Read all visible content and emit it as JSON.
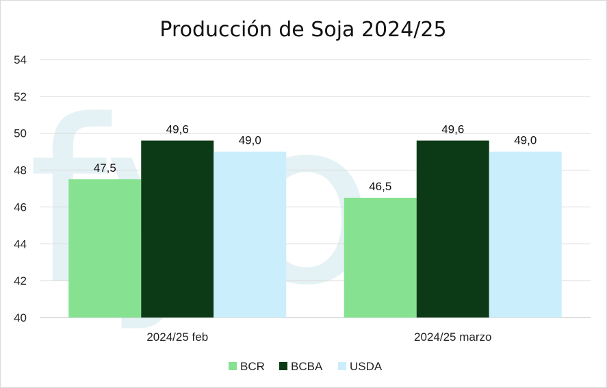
{
  "chart_data": {
    "type": "bar",
    "title": "Producción de Soja 2024/25",
    "categories": [
      "2024/25 feb",
      "2024/25 marzo"
    ],
    "series": [
      {
        "name": "BCR",
        "color": "#86e290",
        "values": [
          47.5,
          46.5
        ],
        "labels": [
          "47,5",
          "46,5"
        ]
      },
      {
        "name": "BCBA",
        "color": "#0d3a16",
        "values": [
          49.6,
          49.6
        ],
        "labels": [
          "49,6",
          "49,6"
        ]
      },
      {
        "name": "USDA",
        "color": "#caeefc",
        "values": [
          49.0,
          49.0
        ],
        "labels": [
          "49,0",
          "49,0"
        ]
      }
    ],
    "ylim": [
      40,
      54
    ],
    "yticks": [
      40,
      42,
      44,
      46,
      48,
      50,
      52,
      54
    ],
    "grid": true,
    "legend": "bottom",
    "watermark": "fyo"
  }
}
